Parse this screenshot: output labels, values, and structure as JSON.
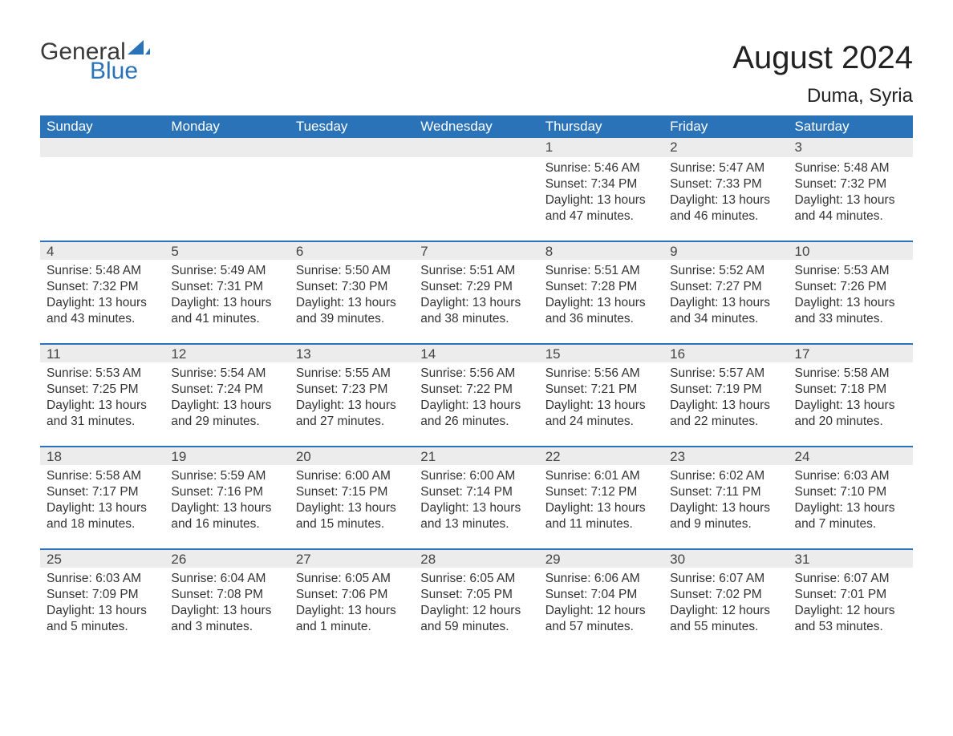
{
  "colors": {
    "header_bg": "#2a73b8",
    "header_text": "#ffffff",
    "daynum_bg": "#ececec",
    "daynum_border": "#2a73b8",
    "body_text": "#333333",
    "page_bg": "#ffffff",
    "title_text": "#222222",
    "logo_gray": "#3a3a3a",
    "logo_blue": "#2a73b8"
  },
  "typography": {
    "title_fontsize": 40,
    "location_fontsize": 24,
    "header_fontsize": 17,
    "daynum_fontsize": 17,
    "body_fontsize": 15.5
  },
  "logo": {
    "text_top": "General",
    "text_bottom": "Blue"
  },
  "title": "August 2024",
  "location": "Duma, Syria",
  "day_headers": [
    "Sunday",
    "Monday",
    "Tuesday",
    "Wednesday",
    "Thursday",
    "Friday",
    "Saturday"
  ],
  "labels": {
    "sunrise": "Sunrise: ",
    "sunset": "Sunset: ",
    "daylight": "Daylight: "
  },
  "weeks": [
    [
      null,
      null,
      null,
      null,
      {
        "n": "1",
        "sunrise": "5:46 AM",
        "sunset": "7:34 PM",
        "daylight": "13 hours and 47 minutes."
      },
      {
        "n": "2",
        "sunrise": "5:47 AM",
        "sunset": "7:33 PM",
        "daylight": "13 hours and 46 minutes."
      },
      {
        "n": "3",
        "sunrise": "5:48 AM",
        "sunset": "7:32 PM",
        "daylight": "13 hours and 44 minutes."
      }
    ],
    [
      {
        "n": "4",
        "sunrise": "5:48 AM",
        "sunset": "7:32 PM",
        "daylight": "13 hours and 43 minutes."
      },
      {
        "n": "5",
        "sunrise": "5:49 AM",
        "sunset": "7:31 PM",
        "daylight": "13 hours and 41 minutes."
      },
      {
        "n": "6",
        "sunrise": "5:50 AM",
        "sunset": "7:30 PM",
        "daylight": "13 hours and 39 minutes."
      },
      {
        "n": "7",
        "sunrise": "5:51 AM",
        "sunset": "7:29 PM",
        "daylight": "13 hours and 38 minutes."
      },
      {
        "n": "8",
        "sunrise": "5:51 AM",
        "sunset": "7:28 PM",
        "daylight": "13 hours and 36 minutes."
      },
      {
        "n": "9",
        "sunrise": "5:52 AM",
        "sunset": "7:27 PM",
        "daylight": "13 hours and 34 minutes."
      },
      {
        "n": "10",
        "sunrise": "5:53 AM",
        "sunset": "7:26 PM",
        "daylight": "13 hours and 33 minutes."
      }
    ],
    [
      {
        "n": "11",
        "sunrise": "5:53 AM",
        "sunset": "7:25 PM",
        "daylight": "13 hours and 31 minutes."
      },
      {
        "n": "12",
        "sunrise": "5:54 AM",
        "sunset": "7:24 PM",
        "daylight": "13 hours and 29 minutes."
      },
      {
        "n": "13",
        "sunrise": "5:55 AM",
        "sunset": "7:23 PM",
        "daylight": "13 hours and 27 minutes."
      },
      {
        "n": "14",
        "sunrise": "5:56 AM",
        "sunset": "7:22 PM",
        "daylight": "13 hours and 26 minutes."
      },
      {
        "n": "15",
        "sunrise": "5:56 AM",
        "sunset": "7:21 PM",
        "daylight": "13 hours and 24 minutes."
      },
      {
        "n": "16",
        "sunrise": "5:57 AM",
        "sunset": "7:19 PM",
        "daylight": "13 hours and 22 minutes."
      },
      {
        "n": "17",
        "sunrise": "5:58 AM",
        "sunset": "7:18 PM",
        "daylight": "13 hours and 20 minutes."
      }
    ],
    [
      {
        "n": "18",
        "sunrise": "5:58 AM",
        "sunset": "7:17 PM",
        "daylight": "13 hours and 18 minutes."
      },
      {
        "n": "19",
        "sunrise": "5:59 AM",
        "sunset": "7:16 PM",
        "daylight": "13 hours and 16 minutes."
      },
      {
        "n": "20",
        "sunrise": "6:00 AM",
        "sunset": "7:15 PM",
        "daylight": "13 hours and 15 minutes."
      },
      {
        "n": "21",
        "sunrise": "6:00 AM",
        "sunset": "7:14 PM",
        "daylight": "13 hours and 13 minutes."
      },
      {
        "n": "22",
        "sunrise": "6:01 AM",
        "sunset": "7:12 PM",
        "daylight": "13 hours and 11 minutes."
      },
      {
        "n": "23",
        "sunrise": "6:02 AM",
        "sunset": "7:11 PM",
        "daylight": "13 hours and 9 minutes."
      },
      {
        "n": "24",
        "sunrise": "6:03 AM",
        "sunset": "7:10 PM",
        "daylight": "13 hours and 7 minutes."
      }
    ],
    [
      {
        "n": "25",
        "sunrise": "6:03 AM",
        "sunset": "7:09 PM",
        "daylight": "13 hours and 5 minutes."
      },
      {
        "n": "26",
        "sunrise": "6:04 AM",
        "sunset": "7:08 PM",
        "daylight": "13 hours and 3 minutes."
      },
      {
        "n": "27",
        "sunrise": "6:05 AM",
        "sunset": "7:06 PM",
        "daylight": "13 hours and 1 minute."
      },
      {
        "n": "28",
        "sunrise": "6:05 AM",
        "sunset": "7:05 PM",
        "daylight": "12 hours and 59 minutes."
      },
      {
        "n": "29",
        "sunrise": "6:06 AM",
        "sunset": "7:04 PM",
        "daylight": "12 hours and 57 minutes."
      },
      {
        "n": "30",
        "sunrise": "6:07 AM",
        "sunset": "7:02 PM",
        "daylight": "12 hours and 55 minutes."
      },
      {
        "n": "31",
        "sunrise": "6:07 AM",
        "sunset": "7:01 PM",
        "daylight": "12 hours and 53 minutes."
      }
    ]
  ]
}
